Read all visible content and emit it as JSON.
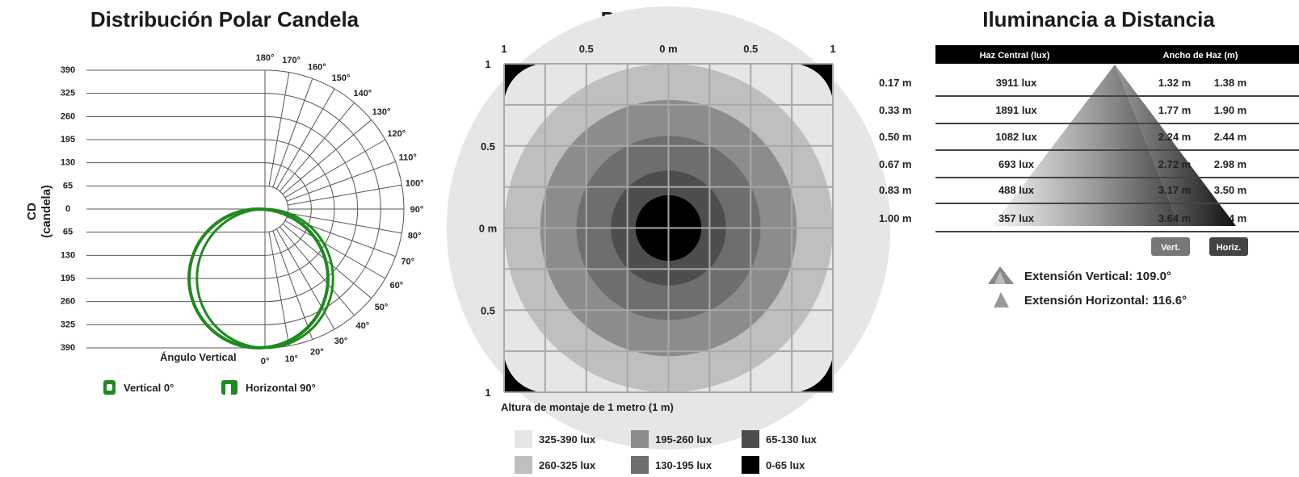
{
  "chart_data": [
    {
      "type": "polar",
      "title": "Distribución Polar Candela",
      "ylabel": [
        "CD",
        "(candela)"
      ],
      "xlabel": "Ángulo Vertical",
      "radial_ticks": [
        "390",
        "325",
        "260",
        "195",
        "130",
        "65",
        "0",
        "65",
        "130",
        "195",
        "260",
        "325",
        "390"
      ],
      "angle_labels": [
        "180°",
        "170°",
        "160°",
        "150°",
        "140°",
        "130°",
        "120°",
        "110°",
        "100°",
        "90°",
        "80°",
        "70°",
        "60°",
        "50°",
        "40°",
        "30°",
        "20°",
        "10°",
        "0°"
      ],
      "rmax": 390,
      "series": [
        {
          "name": "Vertical 0°",
          "color": "#1f8a1f",
          "shape": "round-square",
          "max": 390
        },
        {
          "name": "Horizontal 90°",
          "color": "#1f8a1f",
          "shape": "notched-square",
          "max": 390
        }
      ]
    },
    {
      "type": "heatmap",
      "title": "Patrón Isolux",
      "top_ticks": [
        "1",
        "0.5",
        "0 m",
        "0.5",
        "1"
      ],
      "left_ticks": [
        "1",
        "0.5",
        "0 m",
        "0.5",
        "1"
      ],
      "xlabel": "Altura de montaje de 1 metro (1 m)",
      "range": [
        -1,
        1
      ],
      "max_lux": 390,
      "legend": [
        {
          "label": "325-390 lux",
          "color": "#e6e6e6"
        },
        {
          "label": "195-260 lux",
          "color": "#8c8c8c"
        },
        {
          "label": "65-130 lux",
          "color": "#4d4d4d"
        },
        {
          "label": "260-325 lux",
          "color": "#bfbfbf"
        },
        {
          "label": "130-195 lux",
          "color": "#6e6e6e"
        },
        {
          "label": "0-65 lux",
          "color": "#000000"
        }
      ]
    },
    {
      "type": "table",
      "title": "Iluminancia a Distancia",
      "columns": [
        "Haz Central (lux)",
        "Ancho de Haz (m)"
      ],
      "rows": [
        {
          "distance": "0.17 m",
          "lux": "3911 lux",
          "vert": "1.32 m",
          "horiz": "1.38 m"
        },
        {
          "distance": "0.33 m",
          "lux": "1891 lux",
          "vert": "1.77 m",
          "horiz": "1.90 m"
        },
        {
          "distance": "0.50 m",
          "lux": "1082 lux",
          "vert": "2.24 m",
          "horiz": "2.44 m"
        },
        {
          "distance": "0.67 m",
          "lux": "693 lux",
          "vert": "2.72 m",
          "horiz": "2.98 m"
        },
        {
          "distance": "0.83 m",
          "lux": "488 lux",
          "vert": "3.17 m",
          "horiz": "3.50 m"
        },
        {
          "distance": "1.00 m",
          "lux": "357 lux",
          "vert": "3.64 m",
          "horiz": "4.14 m"
        }
      ],
      "buttons": [
        "Vert.",
        "Horiz."
      ],
      "spread": [
        {
          "label": "Extensión Vertical: 109.0°",
          "icon": "wide-beam-icon"
        },
        {
          "label": "Extensión Horizontal: 116.6°",
          "icon": "narrow-beam-icon"
        }
      ]
    }
  ]
}
